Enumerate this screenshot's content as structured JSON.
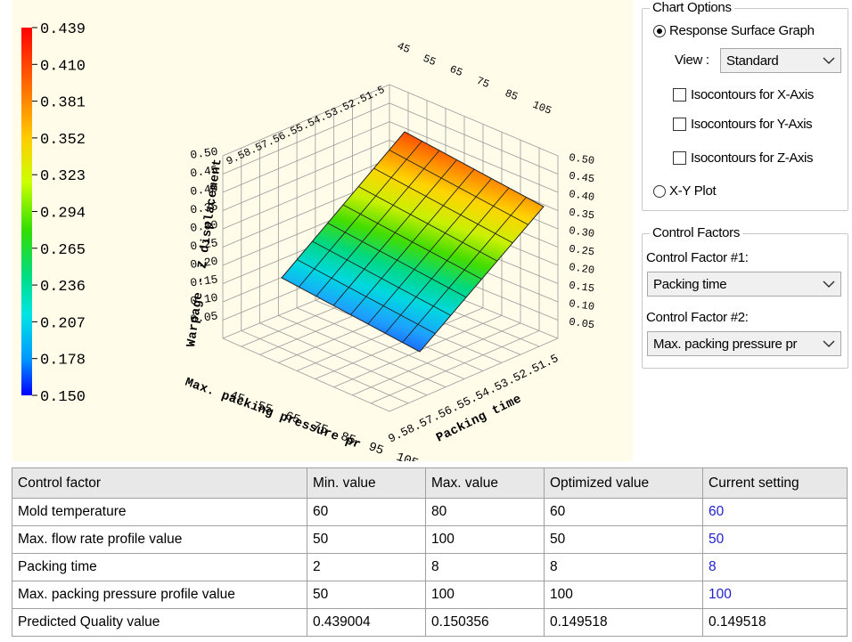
{
  "colorbar": {
    "ticks": [
      "0.439",
      "0.410",
      "0.381",
      "0.352",
      "0.323",
      "0.294",
      "0.265",
      "0.236",
      "0.207",
      "0.178",
      "0.150"
    ],
    "colors": [
      "#e31a1c",
      "#ff5a00",
      "#ffb000",
      "#ffe800",
      "#aaff00",
      "#40e000",
      "#00d070",
      "#00e0e0",
      "#00aaff",
      "#0060ff",
      "#0000ff"
    ]
  },
  "chart_data": {
    "type": "surface3d",
    "zlabel": "Warpage - Z displacement",
    "xlabel": "Max. packing pressure pr",
    "ylabel": "Packing time",
    "z_ticks": [
      "0.05",
      "0.10",
      "0.15",
      "0.20",
      "0.25",
      "0.30",
      "0.35",
      "0.40",
      "0.45",
      "0.50"
    ],
    "x_ticks": [
      "45",
      "55",
      "65",
      "75",
      "85",
      "95",
      "105"
    ],
    "y_ticks": [
      "1.5",
      "2.5",
      "3.5",
      "4.5",
      "5.5",
      "6.5",
      "7.5",
      "8.5",
      "9.5"
    ],
    "top_x_ticks": [
      "45",
      "55",
      "65",
      "75",
      "85",
      "105"
    ],
    "top_y_label": "9.58.57.56.55.54.53.52.51.5",
    "front_y_label": "9.58.57.56.55.54.53.52.51.5",
    "grid": "8x8",
    "z_range": [
      0.15,
      0.439
    ]
  },
  "chart_options": {
    "title": "Chart Options",
    "response_surface": "Response Surface Graph",
    "view_label": "View :",
    "view_value": "Standard",
    "iso_x": "Isocontours for X-Axis",
    "iso_y": "Isocontours for Y-Axis",
    "iso_z": "Isocontours for Z-Axis",
    "xy_plot": "X-Y Plot"
  },
  "control_factors": {
    "title": "Control Factors",
    "cf1_label": "Control Factor #1:",
    "cf1_value": "Packing time",
    "cf2_label": "Control Factor #2:",
    "cf2_value": "Max. packing pressure pr"
  },
  "table": {
    "headers": [
      "Control factor",
      "Min. value",
      "Max. value",
      "Optimized value",
      "Current setting"
    ],
    "rows": [
      [
        "Mold temperature",
        "60",
        "80",
        "60",
        "60"
      ],
      [
        "Max. flow rate profile value",
        "50",
        "100",
        "50",
        "50"
      ],
      [
        "Packing time",
        "2",
        "8",
        "8",
        "8"
      ],
      [
        "Max. packing pressure profile value",
        "50",
        "100",
        "100",
        "100"
      ],
      [
        "Predicted Quality value",
        "0.439004",
        "0.150356",
        "0.149518",
        "0.149518"
      ]
    ]
  }
}
